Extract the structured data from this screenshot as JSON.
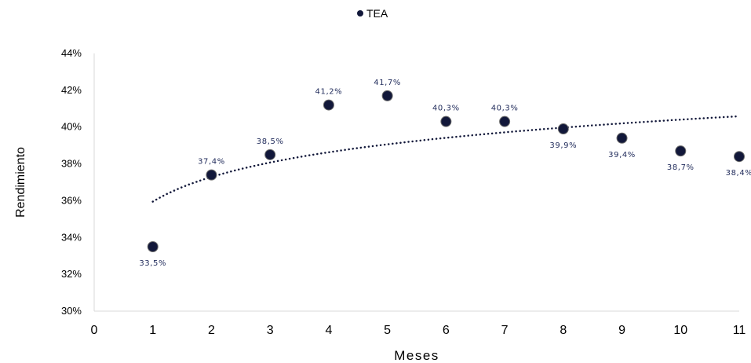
{
  "chart_data": {
    "type": "scatter",
    "series": [
      {
        "name": "TEA",
        "x": [
          1,
          2,
          3,
          4,
          5,
          6,
          7,
          8,
          9,
          10,
          11
        ],
        "y": [
          33.5,
          37.4,
          38.5,
          41.2,
          41.7,
          40.3,
          40.3,
          39.9,
          39.4,
          38.7,
          38.4
        ],
        "labels": [
          "33,5%",
          "37,4%",
          "38,5%",
          "41,2%",
          "41,7%",
          "40,3%",
          "40,3%",
          "39,9%",
          "39,4%",
          "38,7%",
          "38,4%"
        ],
        "color": "#12183a"
      }
    ],
    "trendline": {
      "type": "logarithmic",
      "style": "dotted",
      "color": "#12183a"
    },
    "xlabel": "Meses",
    "ylabel": "Rendimiento",
    "xlim": [
      0,
      11
    ],
    "ylim": [
      30,
      44
    ],
    "x_ticks": [
      "0",
      "1",
      "2",
      "3",
      "4",
      "5",
      "6",
      "7",
      "8",
      "9",
      "10",
      "11"
    ],
    "y_ticks": [
      "30%",
      "32%",
      "34%",
      "36%",
      "38%",
      "40%",
      "42%",
      "44%"
    ],
    "legend_position": "top-center",
    "grid": false
  }
}
